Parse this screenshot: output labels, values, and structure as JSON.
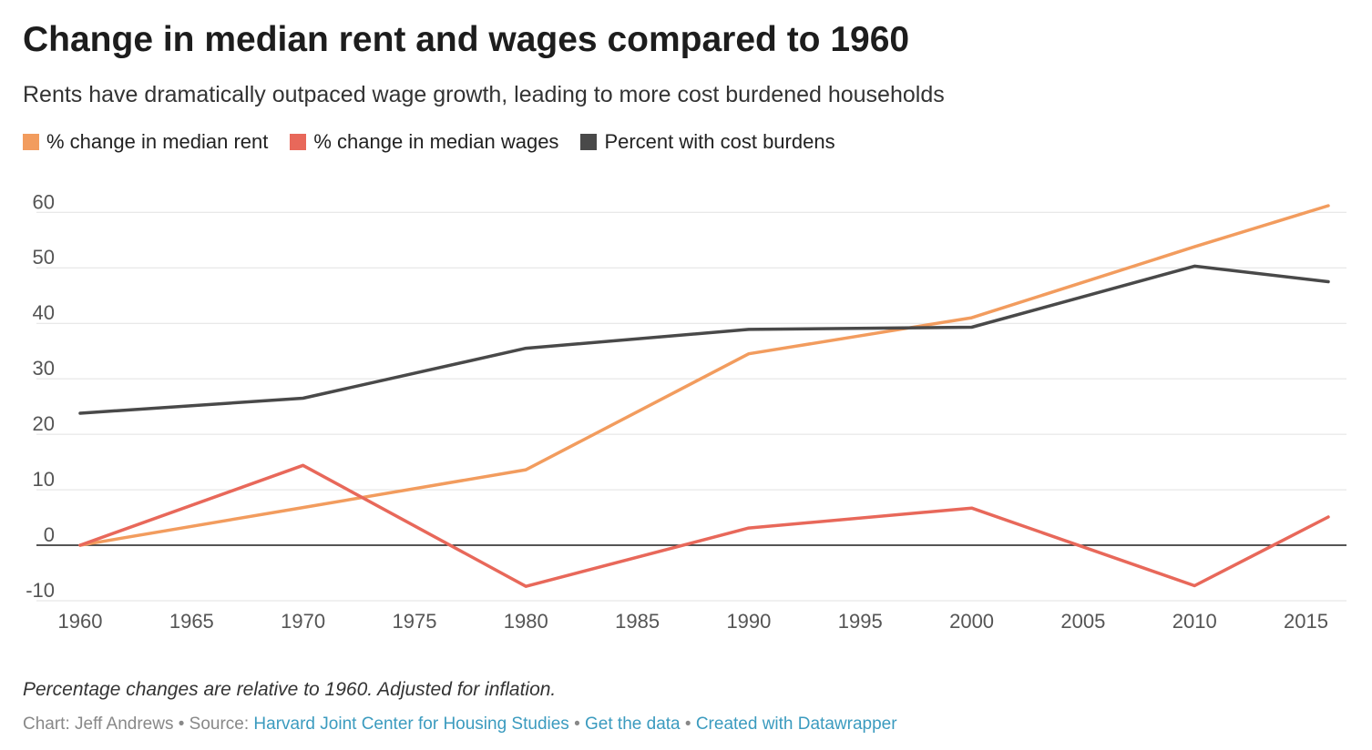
{
  "chart_data": {
    "type": "line",
    "title": "Change in median rent and wages compared to 1960",
    "subtitle": "Rents have dramatically outpaced wage growth, leading to more cost burdened households",
    "xlabel": "",
    "ylabel": "",
    "x": [
      1960,
      1970,
      1980,
      1990,
      2000,
      2010,
      2016
    ],
    "xlim": [
      1960,
      2016
    ],
    "ylim": [
      -10,
      63
    ],
    "xticks": [
      "1960",
      "1965",
      "1970",
      "1975",
      "1980",
      "1985",
      "1990",
      "1995",
      "2000",
      "2005",
      "2010",
      "2015"
    ],
    "xtick_values": [
      1960,
      1965,
      1970,
      1975,
      1980,
      1985,
      1990,
      1995,
      2000,
      2005,
      2010,
      2015
    ],
    "yticks": [
      "60",
      "50",
      "40",
      "30",
      "20",
      "10",
      "0",
      "-10"
    ],
    "ytick_values": [
      60,
      50,
      40,
      30,
      20,
      10,
      0,
      -10
    ],
    "legend_position": "top-left",
    "grid": true,
    "series": [
      {
        "name": "% change in median rent",
        "color": "#f29c5e",
        "values": [
          0,
          6.8,
          13.6,
          34.5,
          41,
          53.8,
          61.2
        ]
      },
      {
        "name": "% change in median wages",
        "color": "#e8685a",
        "values": [
          0,
          14.4,
          -7.4,
          3.1,
          6.7,
          -7.3,
          5.1
        ]
      },
      {
        "name": "Percent with cost burdens",
        "color": "#494949",
        "values": [
          23.8,
          26.5,
          35.5,
          38.9,
          39.3,
          50.3,
          47.5
        ]
      }
    ]
  },
  "footer": {
    "note": "Percentage changes are relative to 1960. Adjusted for inflation.",
    "prefix": "Chart: Jeff Andrews • Source: ",
    "source_link": "Harvard Joint Center for Housing Studies",
    "sep1": " • ",
    "data_link": "Get the data",
    "sep2": " • ",
    "credit_link": "Created with Datawrapper"
  }
}
